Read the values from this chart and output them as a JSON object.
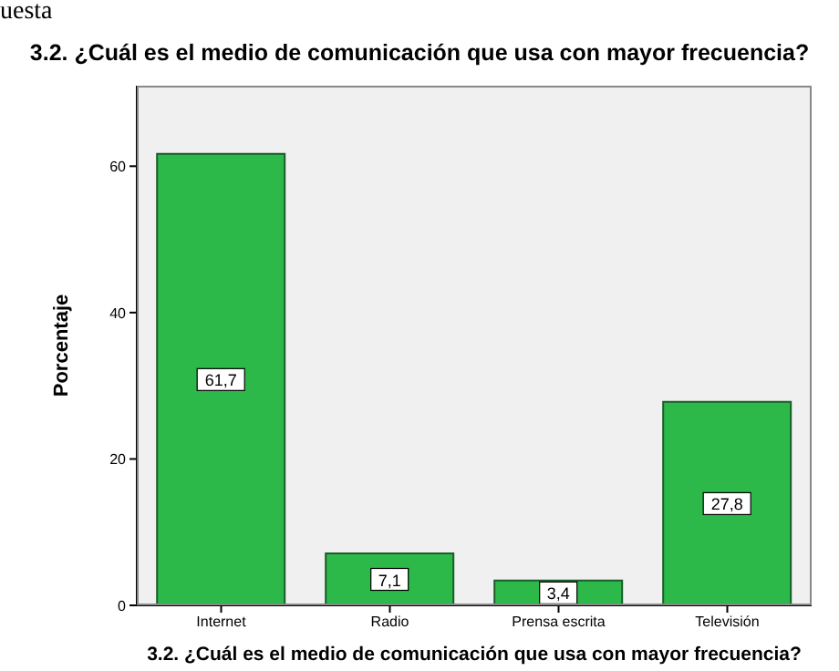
{
  "chart_data": {
    "type": "bar",
    "title": "3.2. ¿Cuál es el medio de comunicación que usa con mayor frecuencia?",
    "xlabel": "3.2. ¿Cuál es el medio de comunicación que usa con mayor frecuencia?",
    "ylabel": "Porcentaje",
    "annotations": [
      "uesta"
    ],
    "categories": [
      "Internet",
      "Radio",
      "Prensa escrita",
      "Televisión"
    ],
    "values": [
      61.7,
      7.1,
      3.4,
      27.8
    ],
    "value_labels": [
      "61,7",
      "7,1",
      "3,4",
      "27,8"
    ],
    "color": "#2db84a",
    "ylim": [
      0,
      71
    ],
    "yticks": [
      0,
      20,
      40,
      60
    ],
    "grid": false
  }
}
